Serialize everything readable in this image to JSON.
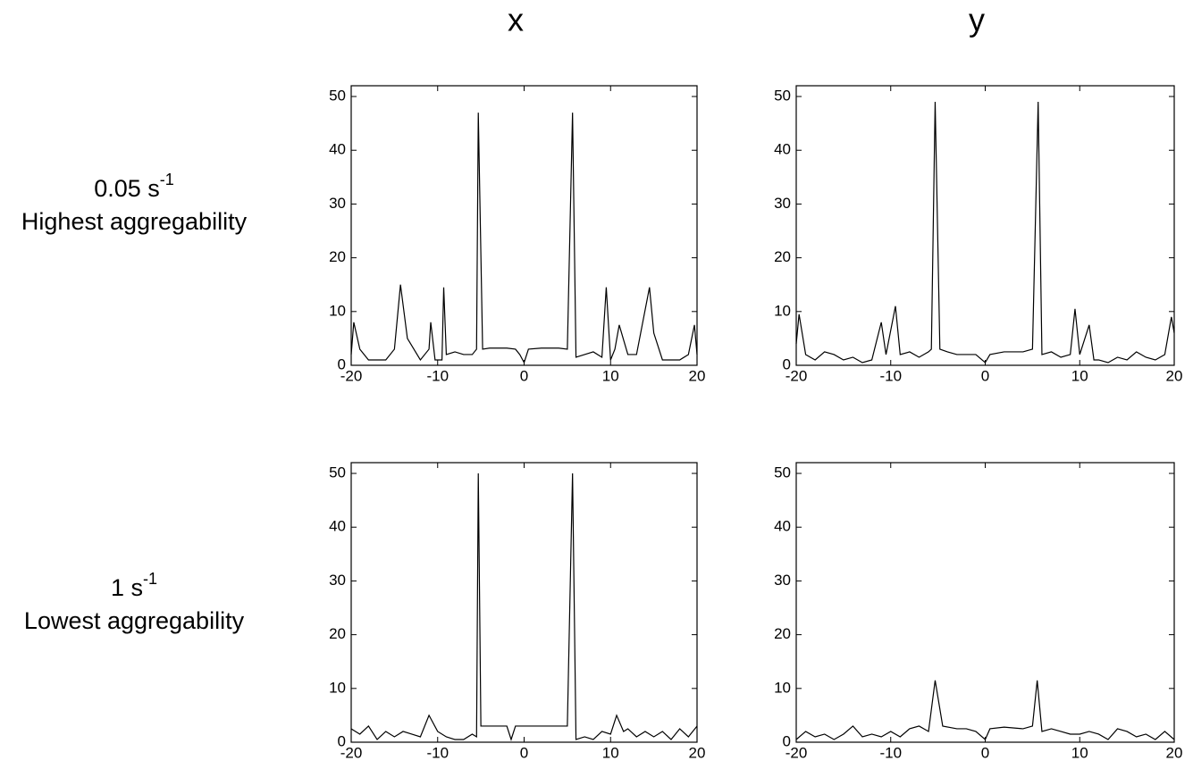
{
  "column_labels": [
    "x",
    "y"
  ],
  "row_labels": [
    {
      "rate": "0.05 s",
      "rate_exponent": "-1",
      "description": "Highest aggregability"
    },
    {
      "rate": "1 s",
      "rate_exponent": "-1",
      "description": "Lowest aggregability"
    }
  ],
  "chart_data": [
    {
      "type": "line",
      "x": [
        -20,
        -19.7,
        -19,
        -18,
        -17,
        -16,
        -15,
        -14.3,
        -13.5,
        -12,
        -11,
        -10.8,
        -10.3,
        -9.5,
        -9.3,
        -9,
        -8,
        -7,
        -6,
        -5.5,
        -5.3,
        -4.8,
        -4,
        -2,
        -1,
        -0.5,
        0,
        0.5,
        2,
        4,
        5,
        5.6,
        6,
        7,
        8,
        9,
        9.5,
        10,
        10.5,
        11,
        12,
        13,
        14.5,
        15,
        16,
        17,
        18,
        19,
        19.7,
        20
      ],
      "series": [
        {
          "color": "#000000",
          "values": [
            2,
            8,
            3,
            1,
            1,
            1,
            3,
            15,
            5,
            1,
            3,
            8,
            1,
            1,
            14.5,
            2,
            2.5,
            2,
            2,
            3,
            47,
            3,
            3.2,
            3.2,
            3,
            2,
            0.5,
            3,
            3.2,
            3.2,
            3,
            47,
            1.5,
            2,
            2.5,
            1.5,
            14.5,
            1,
            3,
            7.5,
            2,
            2,
            14.5,
            6,
            1,
            1,
            1,
            2,
            7.5,
            2
          ]
        }
      ],
      "xlim": [
        -20,
        20
      ],
      "ylim": [
        0,
        52
      ],
      "xticks": [
        -20,
        -10,
        0,
        10,
        20
      ],
      "yticks": [
        0,
        10,
        20,
        30,
        40,
        50
      ]
    },
    {
      "type": "line",
      "x": [
        -20,
        -19.7,
        -19,
        -18,
        -17,
        -16,
        -15,
        -14,
        -13,
        -12,
        -11,
        -10.5,
        -9.5,
        -9,
        -8,
        -7,
        -6,
        -5.7,
        -5.3,
        -4.8,
        -4,
        -3,
        -2,
        -1,
        0,
        0.5,
        2,
        4,
        5,
        5.6,
        6,
        7,
        8,
        9,
        9.5,
        10,
        11,
        11.5,
        12,
        13,
        14,
        15,
        16,
        17,
        18,
        19,
        19.7,
        20
      ],
      "series": [
        {
          "color": "#000000",
          "values": [
            4,
            9.5,
            2,
            1,
            2.5,
            2,
            1,
            1.5,
            0.5,
            1,
            8,
            2,
            11,
            2,
            2.5,
            1.5,
            2.5,
            3,
            49,
            3,
            2.5,
            2,
            2,
            2,
            0.5,
            2,
            2.5,
            2.5,
            3,
            49,
            2,
            2.5,
            1.5,
            2,
            10.5,
            2,
            7.5,
            1,
            1,
            0.5,
            1.5,
            1,
            2.5,
            1.5,
            1,
            2,
            9,
            6
          ]
        }
      ],
      "xlim": [
        -20,
        20
      ],
      "ylim": [
        0,
        52
      ],
      "xticks": [
        -20,
        -10,
        0,
        10,
        20
      ],
      "yticks": [
        0,
        10,
        20,
        30,
        40,
        50
      ]
    },
    {
      "type": "line",
      "x": [
        -20,
        -19,
        -18,
        -17,
        -16,
        -15,
        -14,
        -13,
        -12,
        -11,
        -10,
        -9,
        -8,
        -7,
        -6,
        -5.5,
        -5.3,
        -5,
        -4,
        -2,
        -1.5,
        -1,
        0,
        0.5,
        2,
        4,
        5,
        5.6,
        6,
        7,
        8,
        9,
        10,
        10.7,
        11.5,
        12,
        13,
        14,
        15,
        16,
        17,
        18,
        19,
        20
      ],
      "series": [
        {
          "color": "#000000",
          "values": [
            2.5,
            1.5,
            3,
            0.5,
            2,
            1,
            2,
            1.5,
            1,
            5,
            2,
            1,
            0.5,
            0.5,
            1.5,
            1,
            50,
            3,
            3,
            3,
            0.5,
            3,
            3,
            3,
            3,
            3,
            3,
            50,
            0.5,
            1,
            0.5,
            2,
            1.5,
            5,
            2,
            2.5,
            1,
            2,
            1,
            2,
            0.5,
            2.5,
            1,
            3
          ]
        }
      ],
      "xlim": [
        -20,
        20
      ],
      "ylim": [
        0,
        52
      ],
      "xticks": [
        -20,
        -10,
        0,
        10,
        20
      ],
      "yticks": [
        0,
        10,
        20,
        30,
        40,
        50
      ]
    },
    {
      "type": "line",
      "x": [
        -20,
        -19,
        -18,
        -17,
        -16,
        -15,
        -14,
        -13,
        -12,
        -11,
        -10,
        -9,
        -8,
        -7,
        -6,
        -5.3,
        -4.5,
        -3,
        -2,
        -1,
        0,
        0.5,
        2,
        4,
        5,
        5.5,
        6,
        7,
        8,
        9,
        10,
        11,
        12,
        13,
        14,
        15,
        16,
        17,
        18,
        19,
        20
      ],
      "series": [
        {
          "color": "#000000",
          "values": [
            0.5,
            2,
            1,
            1.5,
            0.5,
            1.5,
            3,
            1,
            1.5,
            1,
            2,
            1,
            2.5,
            3,
            2,
            11.5,
            3,
            2.5,
            2.5,
            2,
            0.5,
            2.5,
            2.8,
            2.5,
            3,
            11.5,
            2,
            2.5,
            2,
            1.5,
            1.5,
            2,
            1.5,
            0.5,
            2.5,
            2,
            1,
            1.5,
            0.5,
            2,
            0.5
          ]
        }
      ],
      "xlim": [
        -20,
        20
      ],
      "ylim": [
        0,
        52
      ],
      "xticks": [
        -20,
        -10,
        0,
        10,
        20
      ],
      "yticks": [
        0,
        10,
        20,
        30,
        40,
        50
      ]
    }
  ]
}
